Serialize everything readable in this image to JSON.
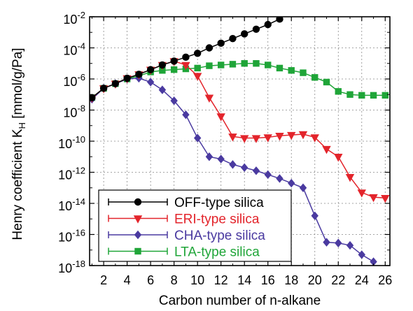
{
  "chart_data": {
    "type": "line",
    "title": "",
    "xlabel": "Carbon number of n-alkane",
    "ylabel_main": "Henry coefficient K",
    "ylabel_sub": "H",
    "ylabel_unit": " [mmol/g/Pa]",
    "xlim": [
      0.8,
      26.4
    ],
    "ylim_exp": [
      -18,
      -2
    ],
    "y_scale": "log",
    "grid": true,
    "legend_position": "bottom-left",
    "x_ticks": [
      2,
      4,
      6,
      8,
      10,
      12,
      14,
      16,
      18,
      20,
      22,
      24,
      26
    ],
    "y_ticks": [
      {
        "exp": -2,
        "base": "10",
        "sup": "-2"
      },
      {
        "exp": -4,
        "base": "10",
        "sup": "-4"
      },
      {
        "exp": -6,
        "base": "10",
        "sup": "-6"
      },
      {
        "exp": -8,
        "base": "10",
        "sup": "-8"
      },
      {
        "exp": -10,
        "base": "10",
        "sup": "-10"
      },
      {
        "exp": -12,
        "base": "10",
        "sup": "-12"
      },
      {
        "exp": -14,
        "base": "10",
        "sup": "-14"
      },
      {
        "exp": -16,
        "base": "10",
        "sup": "-16"
      },
      {
        "exp": -18,
        "base": "10",
        "sup": "-18"
      }
    ],
    "series": [
      {
        "name": "OFF-type silica",
        "color": "#000000",
        "marker": "circle",
        "x": [
          1,
          2,
          3,
          4,
          5,
          6,
          7,
          8,
          9,
          10,
          11,
          12,
          13,
          14,
          15,
          16,
          17
        ],
        "y_log10": [
          -7.2,
          -6.6,
          -6.3,
          -5.95,
          -5.7,
          -5.4,
          -5.1,
          -4.85,
          -4.6,
          -4.35,
          -4.0,
          -3.7,
          -3.4,
          -3.1,
          -2.8,
          -2.5,
          -2.15
        ]
      },
      {
        "name": "ERI-type silica",
        "color": "#e3242b",
        "marker": "triangle-down",
        "x": [
          1,
          2,
          3,
          4,
          5,
          6,
          7,
          8,
          9,
          10,
          11,
          12,
          13,
          14,
          15,
          16,
          17,
          18,
          19,
          20,
          21,
          22,
          23,
          24,
          25,
          26
        ],
        "y_log10": [
          -7.2,
          -6.6,
          -6.3,
          -5.95,
          -5.7,
          -5.4,
          -5.1,
          -4.85,
          -5.1,
          -5.8,
          -7.2,
          -8.4,
          -9.7,
          -9.8,
          -9.8,
          -9.75,
          -9.65,
          -9.6,
          -9.55,
          -9.75,
          -10.5,
          -11.0,
          -12.3,
          -13.3,
          -13.6,
          -13.65
        ]
      },
      {
        "name": "CHA-type silica",
        "color": "#4a3aa0",
        "marker": "diamond",
        "x": [
          1,
          2,
          3,
          4,
          5,
          6,
          7,
          8,
          9,
          10,
          11,
          12,
          13,
          14,
          15,
          16,
          17,
          18,
          19,
          20,
          21,
          22,
          23,
          24,
          25
        ],
        "y_log10": [
          -7.3,
          -6.6,
          -6.3,
          -6.0,
          -5.95,
          -6.2,
          -6.7,
          -7.4,
          -8.3,
          -9.8,
          -11.0,
          -11.15,
          -11.5,
          -11.7,
          -11.9,
          -12.15,
          -12.4,
          -12.7,
          -13.0,
          -14.8,
          -16.5,
          -16.55,
          -16.7,
          -17.3,
          -17.75
        ]
      },
      {
        "name": "LTA-type silica",
        "color": "#1fa538",
        "marker": "square",
        "x": [
          1,
          2,
          3,
          4,
          5,
          6,
          7,
          8,
          9,
          10,
          11,
          12,
          13,
          14,
          15,
          16,
          17,
          18,
          19,
          20,
          21,
          22,
          23,
          24,
          25,
          26
        ],
        "y_log10": [
          -7.2,
          -6.6,
          -6.3,
          -6.0,
          -5.8,
          -5.55,
          -5.45,
          -5.4,
          -5.35,
          -5.3,
          -5.15,
          -5.1,
          -5.05,
          -5.0,
          -5.0,
          -5.1,
          -5.3,
          -5.45,
          -5.6,
          -5.9,
          -6.2,
          -6.8,
          -7.0,
          -7.05,
          -7.05,
          -7.05
        ]
      }
    ]
  }
}
